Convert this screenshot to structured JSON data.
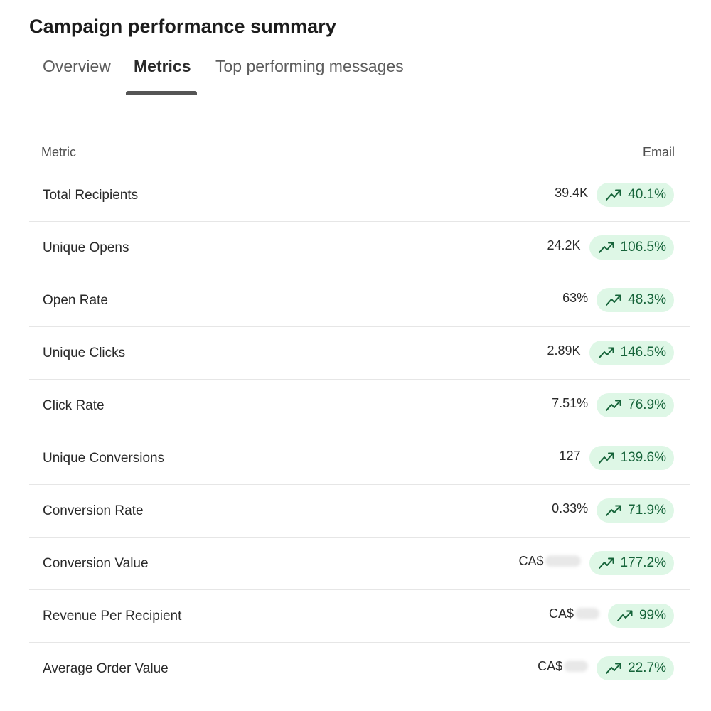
{
  "page": {
    "title": "Campaign performance summary"
  },
  "tabs": [
    {
      "label": "Overview",
      "active": false
    },
    {
      "label": "Metrics",
      "active": true
    },
    {
      "label": "Top performing messages",
      "active": false
    }
  ],
  "table": {
    "columns": {
      "metric": "Metric",
      "email": "Email"
    },
    "rows": [
      {
        "label": "Total Recipients",
        "value": "39.4K",
        "change": "40.1%"
      },
      {
        "label": "Unique Opens",
        "value": "24.2K",
        "change": "106.5%"
      },
      {
        "label": "Open Rate",
        "value": "63%",
        "change": "48.3%"
      },
      {
        "label": "Unique Clicks",
        "value": "2.89K",
        "change": "146.5%"
      },
      {
        "label": "Click Rate",
        "value": "7.51%",
        "change": "76.9%"
      },
      {
        "label": "Unique Conversions",
        "value": "127",
        "change": "139.6%"
      },
      {
        "label": "Conversion Rate",
        "value": "0.33%",
        "change": "71.9%"
      },
      {
        "label": "Conversion Value",
        "value": "CA$",
        "change": "177.2%",
        "redacted": true
      },
      {
        "label": "Revenue Per Recipient",
        "value": "CA$",
        "change": "99%",
        "redacted": true
      },
      {
        "label": "Average Order Value",
        "value": "CA$",
        "change": "22.7%",
        "redacted": true
      }
    ]
  },
  "icons": {
    "trend": "trend-up-icon"
  },
  "colors": {
    "badge_bg": "#def7e6",
    "badge_text": "#16643a",
    "tab_indicator": "#555555"
  }
}
